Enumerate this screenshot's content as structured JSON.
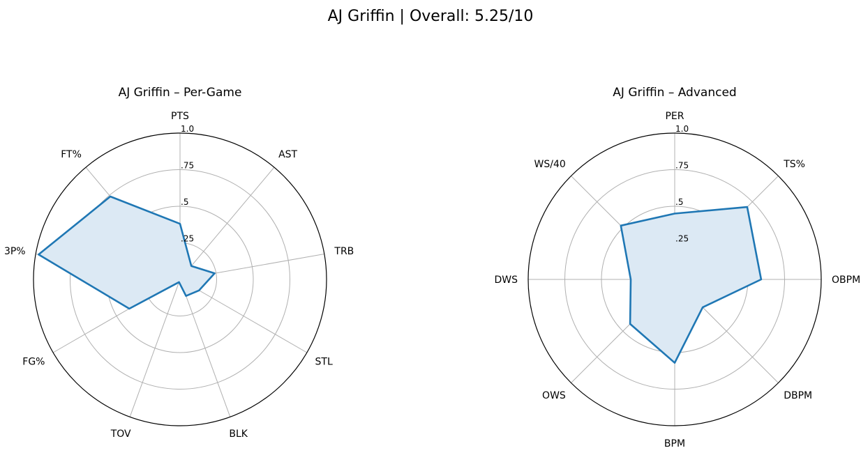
{
  "title": "AJ Griffin | Overall: 5.25/10",
  "colors": {
    "series": "#1f77b4",
    "fill": "#dce9f4",
    "grid": "#b0b0b0",
    "outer": "#000000"
  },
  "chart_data": [
    {
      "type": "radar",
      "title": "AJ Griffin – Per-Game",
      "rlim": [
        0,
        1.0
      ],
      "rticks": [
        0.25,
        0.5,
        0.75,
        1.0
      ],
      "rtick_labels": [
        ".25",
        ".5",
        ".75",
        "1.0"
      ],
      "grid": true,
      "categories": [
        "PTS",
        "AST",
        "TRB",
        "STL",
        "BLK",
        "TOV",
        "FG%",
        "3P%",
        "FT%"
      ],
      "values": [
        0.38,
        0.12,
        0.24,
        0.15,
        0.12,
        0.02,
        0.4,
        0.98,
        0.74
      ]
    },
    {
      "type": "radar",
      "title": "AJ Griffin – Advanced",
      "rlim": [
        0,
        1.0
      ],
      "rticks": [
        0.25,
        0.5,
        0.75,
        1.0
      ],
      "rtick_labels": [
        ".25",
        ".5",
        ".75",
        "1.0"
      ],
      "grid": true,
      "categories": [
        "PER",
        "TS%",
        "OBPM",
        "DBPM",
        "BPM",
        "OWS",
        "DWS",
        "WS/40"
      ],
      "values": [
        0.45,
        0.7,
        0.59,
        0.27,
        0.57,
        0.43,
        0.3,
        0.52
      ]
    }
  ]
}
